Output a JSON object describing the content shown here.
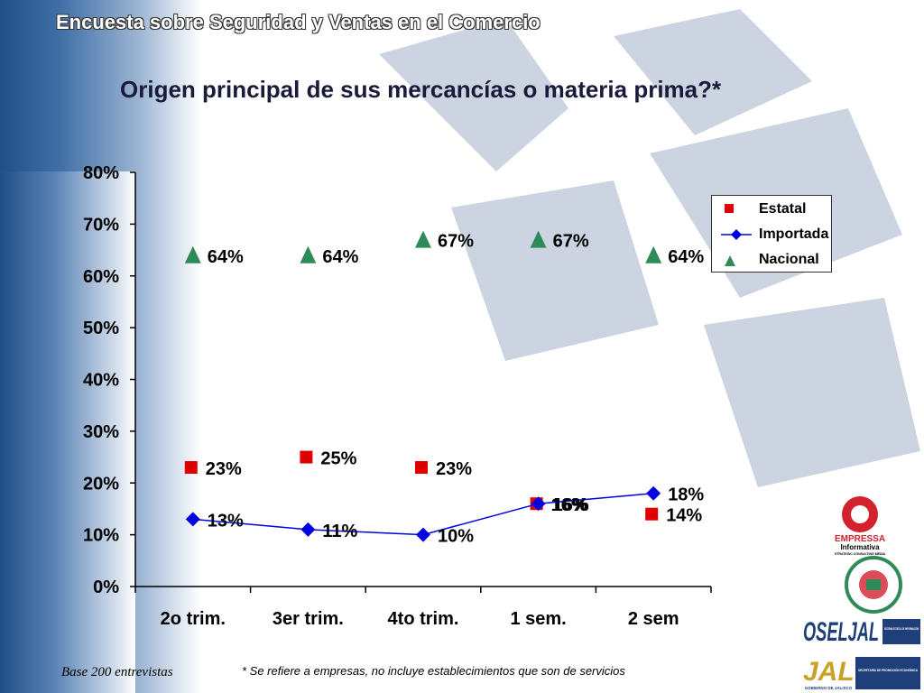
{
  "header": {
    "title": "Encuesta sobre Seguridad y Ventas en el Comercio"
  },
  "chart_data": {
    "type": "line",
    "title": "Origen principal de sus mercancías o materia prima?*",
    "categories": [
      "2o trim.",
      "3er trim.",
      "4to trim.",
      "1 sem.",
      "2 sem"
    ],
    "ylim": [
      0,
      80
    ],
    "yticks": [
      "0%",
      "10%",
      "20%",
      "30%",
      "40%",
      "50%",
      "60%",
      "70%",
      "80%"
    ],
    "grid": false,
    "legend_position": "top-right",
    "series": [
      {
        "name": "Estatal",
        "marker": "square",
        "color": "#e00000",
        "line": false,
        "values": [
          23,
          25,
          23,
          16,
          14
        ],
        "labels": [
          "23%",
          "25%",
          "23%",
          "16%",
          "14%"
        ]
      },
      {
        "name": "Importada",
        "marker": "diamond",
        "color": "#0000e0",
        "line": true,
        "values": [
          13,
          11,
          10,
          16,
          18
        ],
        "labels": [
          "13%",
          "11%",
          "10%",
          "16%",
          "18%"
        ]
      },
      {
        "name": "Nacional",
        "marker": "triangle",
        "color": "#2e8b57",
        "line": false,
        "values": [
          64,
          64,
          67,
          67,
          64
        ],
        "labels": [
          "64%",
          "64%",
          "67%",
          "67%",
          "64%"
        ]
      }
    ]
  },
  "footer": {
    "base": "Base 200 entrevistas",
    "note": "* Se refiere a empresas, no incluye establecimientos que son de servicios"
  },
  "logos": {
    "empressa": "EMPRESSA",
    "empressa_sub": "Informativa",
    "empressa_tag": "STRATEGIC CONSULTING MEDIA",
    "camara": "CAMARA DE COMERCIO DE GUADALAJARA",
    "oseljal": "OSELJAL",
    "oseljal_sub": "SISTEMA ESTATAL DE INFORMACIÓN",
    "jal": "JAL",
    "jal_sub": "SECRETARÍA DE PROMOCIÓN ECONÓMICA",
    "gobierno": "GOBIERNO DE JALISCO"
  }
}
